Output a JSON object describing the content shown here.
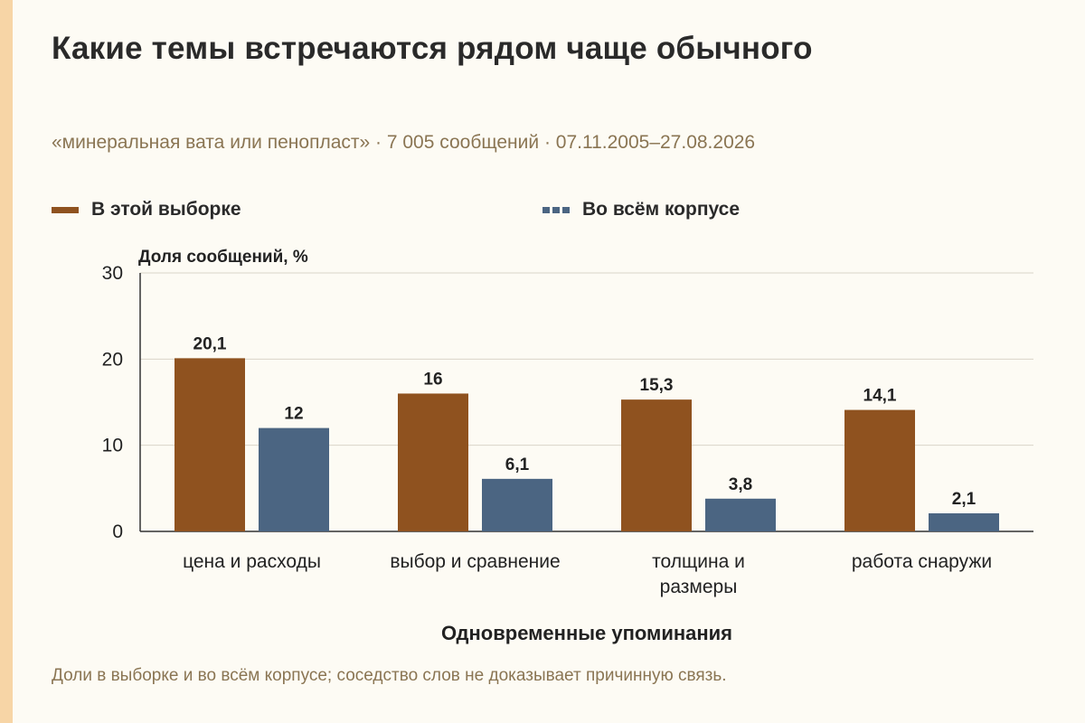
{
  "header": {
    "title": "Какие темы встречаются рядом чаще обычного",
    "subtitle": "«минеральная вата или пенопласт» · 7 005 сообщений · 07.11.2005–27.08.2026"
  },
  "footnote": "Доли в выборке и во всём корпусе; соседство слов не доказывает причинную связь.",
  "colors": {
    "sample": "#8f521f",
    "corpus": "#4b6582",
    "accent_stripe": "#f7d5a6",
    "grid": "#d9d4c8"
  },
  "chart_data": {
    "type": "bar",
    "xlabel": "Одновременные упоминания",
    "ylabel": "Доля сообщений, %",
    "ylim": [
      0,
      30
    ],
    "yticks": [
      0,
      10,
      20,
      30
    ],
    "grid": true,
    "legend_position": "top-left",
    "categories": [
      [
        "цена и расходы"
      ],
      [
        "выбор и сравнение"
      ],
      [
        "толщина и",
        "размеры"
      ],
      [
        "работа снаружи"
      ]
    ],
    "series": [
      {
        "name": "В этой выборке",
        "values": [
          20.1,
          16,
          15.3,
          14.1
        ],
        "labels": [
          "20,1",
          "16",
          "15,3",
          "14,1"
        ]
      },
      {
        "name": "Во всём корпусе",
        "values": [
          12,
          6.1,
          3.8,
          2.1
        ],
        "labels": [
          "12",
          "6,1",
          "3,8",
          "2,1"
        ]
      }
    ]
  }
}
